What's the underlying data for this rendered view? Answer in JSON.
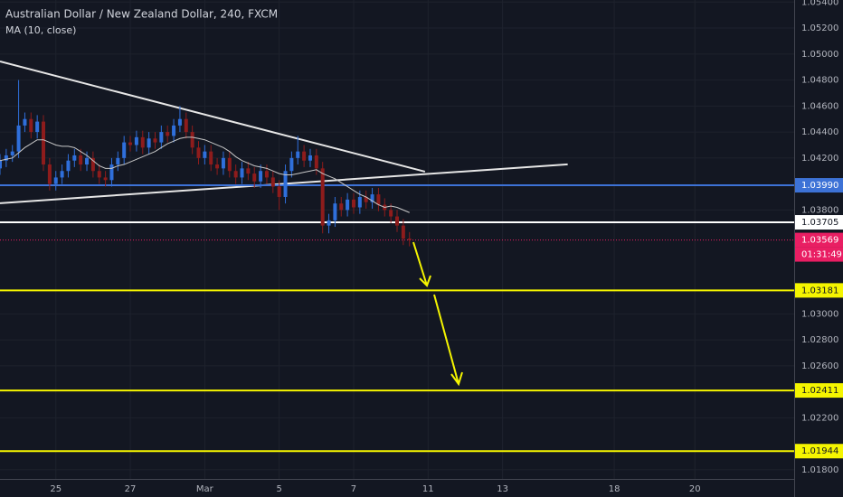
{
  "chart_data": {
    "type": "candlestick",
    "title": "Australian Dollar / New Zealand Dollar, 240, FXCM",
    "subtitle": "MA (10, close)",
    "up_color": "#2f6fdb",
    "down_color": "#8e1c1c",
    "ma_color": "#c8c8c8",
    "grid": true,
    "xlim": [
      0,
      128
    ],
    "ylim": [
      1.0173,
      1.05416
    ],
    "xticks": [
      {
        "value": 9,
        "label": "25"
      },
      {
        "value": 21,
        "label": "27"
      },
      {
        "value": 33,
        "label": "Mar"
      },
      {
        "value": 45,
        "label": "5"
      },
      {
        "value": 57,
        "label": "7"
      },
      {
        "value": 69,
        "label": "11"
      },
      {
        "value": 81,
        "label": "13"
      },
      {
        "value": 99,
        "label": "18"
      },
      {
        "value": 112,
        "label": "20"
      }
    ],
    "yticks": [
      {
        "value": 1.054,
        "label": "1.05400"
      },
      {
        "value": 1.052,
        "label": "1.05200"
      },
      {
        "value": 1.05,
        "label": "1.05000"
      },
      {
        "value": 1.048,
        "label": "1.04800"
      },
      {
        "value": 1.046,
        "label": "1.04600"
      },
      {
        "value": 1.044,
        "label": "1.04400"
      },
      {
        "value": 1.042,
        "label": "1.04200"
      },
      {
        "value": 1.038,
        "label": "1.03800"
      },
      {
        "value": 1.03,
        "label": "1.03000"
      },
      {
        "value": 1.028,
        "label": "1.02800"
      },
      {
        "value": 1.026,
        "label": "1.02600"
      },
      {
        "value": 1.022,
        "label": "1.02200"
      },
      {
        "value": 1.018,
        "label": "1.01800"
      }
    ],
    "open": [
      1.0412,
      1.0418,
      1.0422,
      1.0425,
      1.0445,
      1.045,
      1.044,
      1.0448,
      1.0415,
      1.04,
      1.0405,
      1.041,
      1.0418,
      1.0422,
      1.0415,
      1.042,
      1.041,
      1.0405,
      1.0403,
      1.0415,
      1.042,
      1.0432,
      1.043,
      1.0436,
      1.0428,
      1.0435,
      1.0432,
      1.044,
      1.0437,
      1.0445,
      1.045,
      1.044,
      1.0428,
      1.042,
      1.0425,
      1.0415,
      1.0412,
      1.042,
      1.041,
      1.0405,
      1.0412,
      1.0408,
      1.0402,
      1.041,
      1.0405,
      1.0398,
      1.039,
      1.041,
      1.042,
      1.0425,
      1.0418,
      1.0422,
      1.0412,
      1.0368,
      1.0372,
      1.0385,
      1.038,
      1.0388,
      1.0382,
      1.039,
      1.0386,
      1.0392,
      1.0384,
      1.038,
      1.0375,
      1.0368,
      1.0358
    ],
    "high": [
      1.0423,
      1.0427,
      1.043,
      1.048,
      1.0455,
      1.0455,
      1.0453,
      1.0453,
      1.042,
      1.041,
      1.0415,
      1.0423,
      1.0427,
      1.0427,
      1.0425,
      1.0425,
      1.0415,
      1.041,
      1.042,
      1.0425,
      1.0437,
      1.0437,
      1.0441,
      1.0441,
      1.044,
      1.044,
      1.0445,
      1.0445,
      1.045,
      1.046,
      1.0455,
      1.0445,
      1.0433,
      1.043,
      1.043,
      1.042,
      1.0425,
      1.0425,
      1.0415,
      1.0417,
      1.0417,
      1.0413,
      1.0415,
      1.0415,
      1.041,
      1.0403,
      1.0415,
      1.0425,
      1.0437,
      1.043,
      1.0427,
      1.0427,
      1.0417,
      1.0377,
      1.039,
      1.039,
      1.0393,
      1.0393,
      1.0395,
      1.0395,
      1.0397,
      1.0397,
      1.0389,
      1.0385,
      1.038,
      1.0373,
      1.0363
    ],
    "low": [
      1.0407,
      1.0413,
      1.0417,
      1.042,
      1.044,
      1.0435,
      1.0435,
      1.041,
      1.0395,
      1.0395,
      1.04,
      1.0405,
      1.0413,
      1.041,
      1.041,
      1.0405,
      1.04,
      1.0398,
      1.0398,
      1.041,
      1.0415,
      1.0425,
      1.0425,
      1.0423,
      1.0423,
      1.0427,
      1.0427,
      1.0432,
      1.0432,
      1.044,
      1.0435,
      1.0423,
      1.0415,
      1.0415,
      1.041,
      1.0407,
      1.0407,
      1.0405,
      1.04,
      1.04,
      1.0403,
      1.0397,
      1.0397,
      1.04,
      1.0393,
      1.038,
      1.0385,
      1.0405,
      1.0415,
      1.0413,
      1.0413,
      1.0407,
      1.0362,
      1.0362,
      1.0367,
      1.0375,
      1.0375,
      1.0377,
      1.0377,
      1.0381,
      1.0381,
      1.0379,
      1.0375,
      1.037,
      1.0363,
      1.0353,
      1.0352
    ],
    "close": [
      1.0418,
      1.0422,
      1.0425,
      1.0445,
      1.045,
      1.044,
      1.0448,
      1.0415,
      1.04,
      1.0405,
      1.041,
      1.0418,
      1.0422,
      1.0415,
      1.042,
      1.041,
      1.0405,
      1.0403,
      1.0415,
      1.042,
      1.0432,
      1.043,
      1.0436,
      1.0428,
      1.0435,
      1.0432,
      1.044,
      1.0437,
      1.0445,
      1.045,
      1.044,
      1.0428,
      1.042,
      1.0425,
      1.0415,
      1.0412,
      1.042,
      1.041,
      1.0405,
      1.0412,
      1.0408,
      1.0402,
      1.041,
      1.0405,
      1.0398,
      1.039,
      1.041,
      1.042,
      1.0425,
      1.0418,
      1.0422,
      1.0412,
      1.0368,
      1.0372,
      1.0385,
      1.038,
      1.0388,
      1.0382,
      1.039,
      1.0386,
      1.0392,
      1.0384,
      1.038,
      1.0375,
      1.0368,
      1.0358,
      1.03569
    ],
    "ma": [
      1.0418,
      1.0419,
      1.042,
      1.0424,
      1.0428,
      1.0431,
      1.0434,
      1.0434,
      1.0432,
      1.043,
      1.0429,
      1.0429,
      1.0428,
      1.0425,
      1.0422,
      1.0418,
      1.0414,
      1.0412,
      1.0412,
      1.0414,
      1.0415,
      1.0417,
      1.0419,
      1.0421,
      1.0423,
      1.0425,
      1.0428,
      1.0431,
      1.0433,
      1.0435,
      1.0436,
      1.0436,
      1.0435,
      1.0434,
      1.0432,
      1.043,
      1.0428,
      1.0425,
      1.0421,
      1.0418,
      1.0416,
      1.0414,
      1.0413,
      1.0412,
      1.041,
      1.0408,
      1.0407,
      1.0407,
      1.0408,
      1.0409,
      1.041,
      1.0411,
      1.0408,
      1.0406,
      1.0404,
      1.0401,
      1.0398,
      1.0395,
      1.0392,
      1.039,
      1.0387,
      1.0384,
      1.0382,
      1.0383,
      1.0382,
      1.038,
      1.0378
    ],
    "trendlines": [
      {
        "from": [
          0,
          1.04943
        ],
        "to": [
          68.5,
          1.04095
        ],
        "color": "#e6e6e6"
      },
      {
        "from": [
          0,
          1.03852
        ],
        "to": [
          91.5,
          1.04151
        ],
        "color": "#e6e6e6"
      }
    ],
    "levels": [
      {
        "value": 1.0399,
        "label": "1.03990",
        "color": "#3d72d6",
        "text_color": "#ffffff"
      },
      {
        "value": 1.03705,
        "label": "1.03705",
        "color": "#ffffff",
        "text_color": "#131722"
      },
      {
        "value": 1.03569,
        "label": "1.03569",
        "color": "#e91e63",
        "text_color": "#ffffff",
        "dotted": true,
        "countdown": "01:31:49"
      },
      {
        "value": 1.03181,
        "label": "1.03181",
        "color": "#f5f500",
        "text_color": "#131722"
      },
      {
        "value": 1.02411,
        "label": "1.02411",
        "color": "#f5f500",
        "text_color": "#131722"
      },
      {
        "value": 1.01944,
        "label": "1.01944",
        "color": "#f5f500",
        "text_color": "#131722"
      }
    ]
  }
}
